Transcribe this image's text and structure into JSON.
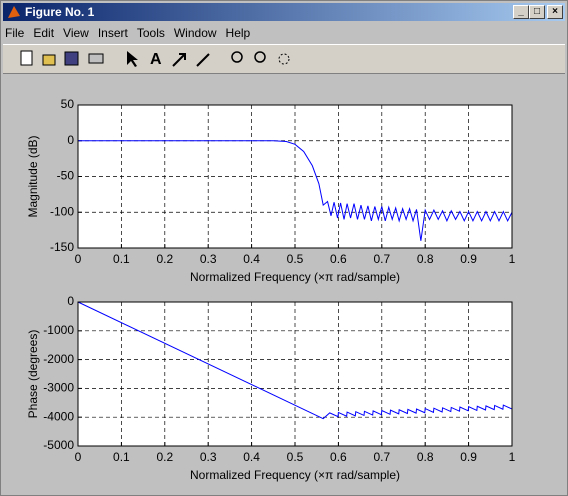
{
  "window": {
    "title": "Figure No. 1",
    "menu": [
      "File",
      "Edit",
      "View",
      "Insert",
      "Tools",
      "Window",
      "Help"
    ]
  },
  "chart_data": [
    {
      "type": "line",
      "xlabel": "Normalized Frequency  (×π rad/sample)",
      "ylabel": "Magnitude (dB)",
      "x": [
        0,
        0.1,
        0.2,
        0.3,
        0.4,
        0.45,
        0.48,
        0.5,
        0.52,
        0.54,
        0.555,
        0.565,
        0.575,
        0.583,
        0.59,
        0.598,
        0.605,
        0.613,
        0.62,
        0.628,
        0.636,
        0.644,
        0.652,
        0.66,
        0.668,
        0.676,
        0.684,
        0.692,
        0.7,
        0.708,
        0.716,
        0.724,
        0.732,
        0.74,
        0.748,
        0.756,
        0.764,
        0.772,
        0.78,
        0.79,
        0.8,
        0.81,
        0.82,
        0.83,
        0.84,
        0.85,
        0.86,
        0.87,
        0.88,
        0.89,
        0.9,
        0.91,
        0.92,
        0.93,
        0.94,
        0.95,
        0.96,
        0.97,
        0.98,
        0.99,
        1
      ],
      "values": [
        0,
        0,
        0,
        0,
        0,
        0,
        -1,
        -5,
        -15,
        -35,
        -60,
        -90,
        -85,
        -105,
        -86,
        -108,
        -87,
        -110,
        -88,
        -108,
        -88,
        -110,
        -90,
        -110,
        -91,
        -112,
        -92,
        -110,
        -92,
        -112,
        -93,
        -110,
        -94,
        -112,
        -95,
        -110,
        -95,
        -112,
        -96,
        -140,
        -97,
        -110,
        -97,
        -110,
        -98,
        -112,
        -98,
        -110,
        -99,
        -112,
        -99,
        -112,
        -99,
        -112,
        -99,
        -112,
        -99,
        -112,
        -99,
        -112,
        -100
      ],
      "color": "#0000ff",
      "xlim": [
        0,
        1
      ],
      "ylim": [
        -150,
        50
      ],
      "xticks": [
        0,
        0.1,
        0.2,
        0.3,
        0.4,
        0.5,
        0.6,
        0.7,
        0.8,
        0.9,
        1
      ],
      "yticks": [
        50,
        0,
        -50,
        -100,
        -150
      ],
      "grid": true
    },
    {
      "type": "line",
      "xlabel": "Normalized Frequency  (×π rad/sample)",
      "ylabel": "Phase (degrees)",
      "x": [
        0,
        0.565,
        0.58,
        0.599,
        0.6,
        0.619,
        0.62,
        0.639,
        0.64,
        0.659,
        0.66,
        0.679,
        0.68,
        0.699,
        0.7,
        0.719,
        0.72,
        0.739,
        0.74,
        0.759,
        0.76,
        0.779,
        0.78,
        0.799,
        0.8,
        0.819,
        0.82,
        0.839,
        0.84,
        0.859,
        0.86,
        0.879,
        0.88,
        0.899,
        0.9,
        0.919,
        0.92,
        0.939,
        0.94,
        0.959,
        0.96,
        0.979,
        0.98,
        0.999
      ],
      "values": [
        0,
        -4050,
        -3850,
        -3980,
        -3836,
        -3966,
        -3823,
        -3953,
        -3809,
        -3939,
        -3796,
        -3926,
        -3782,
        -3912,
        -3769,
        -3899,
        -3755,
        -3885,
        -3742,
        -3872,
        -3728,
        -3858,
        -3715,
        -3845,
        -3701,
        -3831,
        -3688,
        -3818,
        -3674,
        -3804,
        -3661,
        -3791,
        -3647,
        -3777,
        -3634,
        -3764,
        -3620,
        -3750,
        -3607,
        -3737,
        -3593,
        -3723,
        -3580,
        -3710
      ],
      "color": "#0000ff",
      "xlim": [
        0,
        1
      ],
      "ylim": [
        -5000,
        0
      ],
      "xticks": [
        0,
        0.1,
        0.2,
        0.3,
        0.4,
        0.5,
        0.6,
        0.7,
        0.8,
        0.9,
        1
      ],
      "yticks": [
        0,
        -1000,
        -2000,
        -3000,
        -4000,
        -5000
      ],
      "grid": true
    }
  ]
}
